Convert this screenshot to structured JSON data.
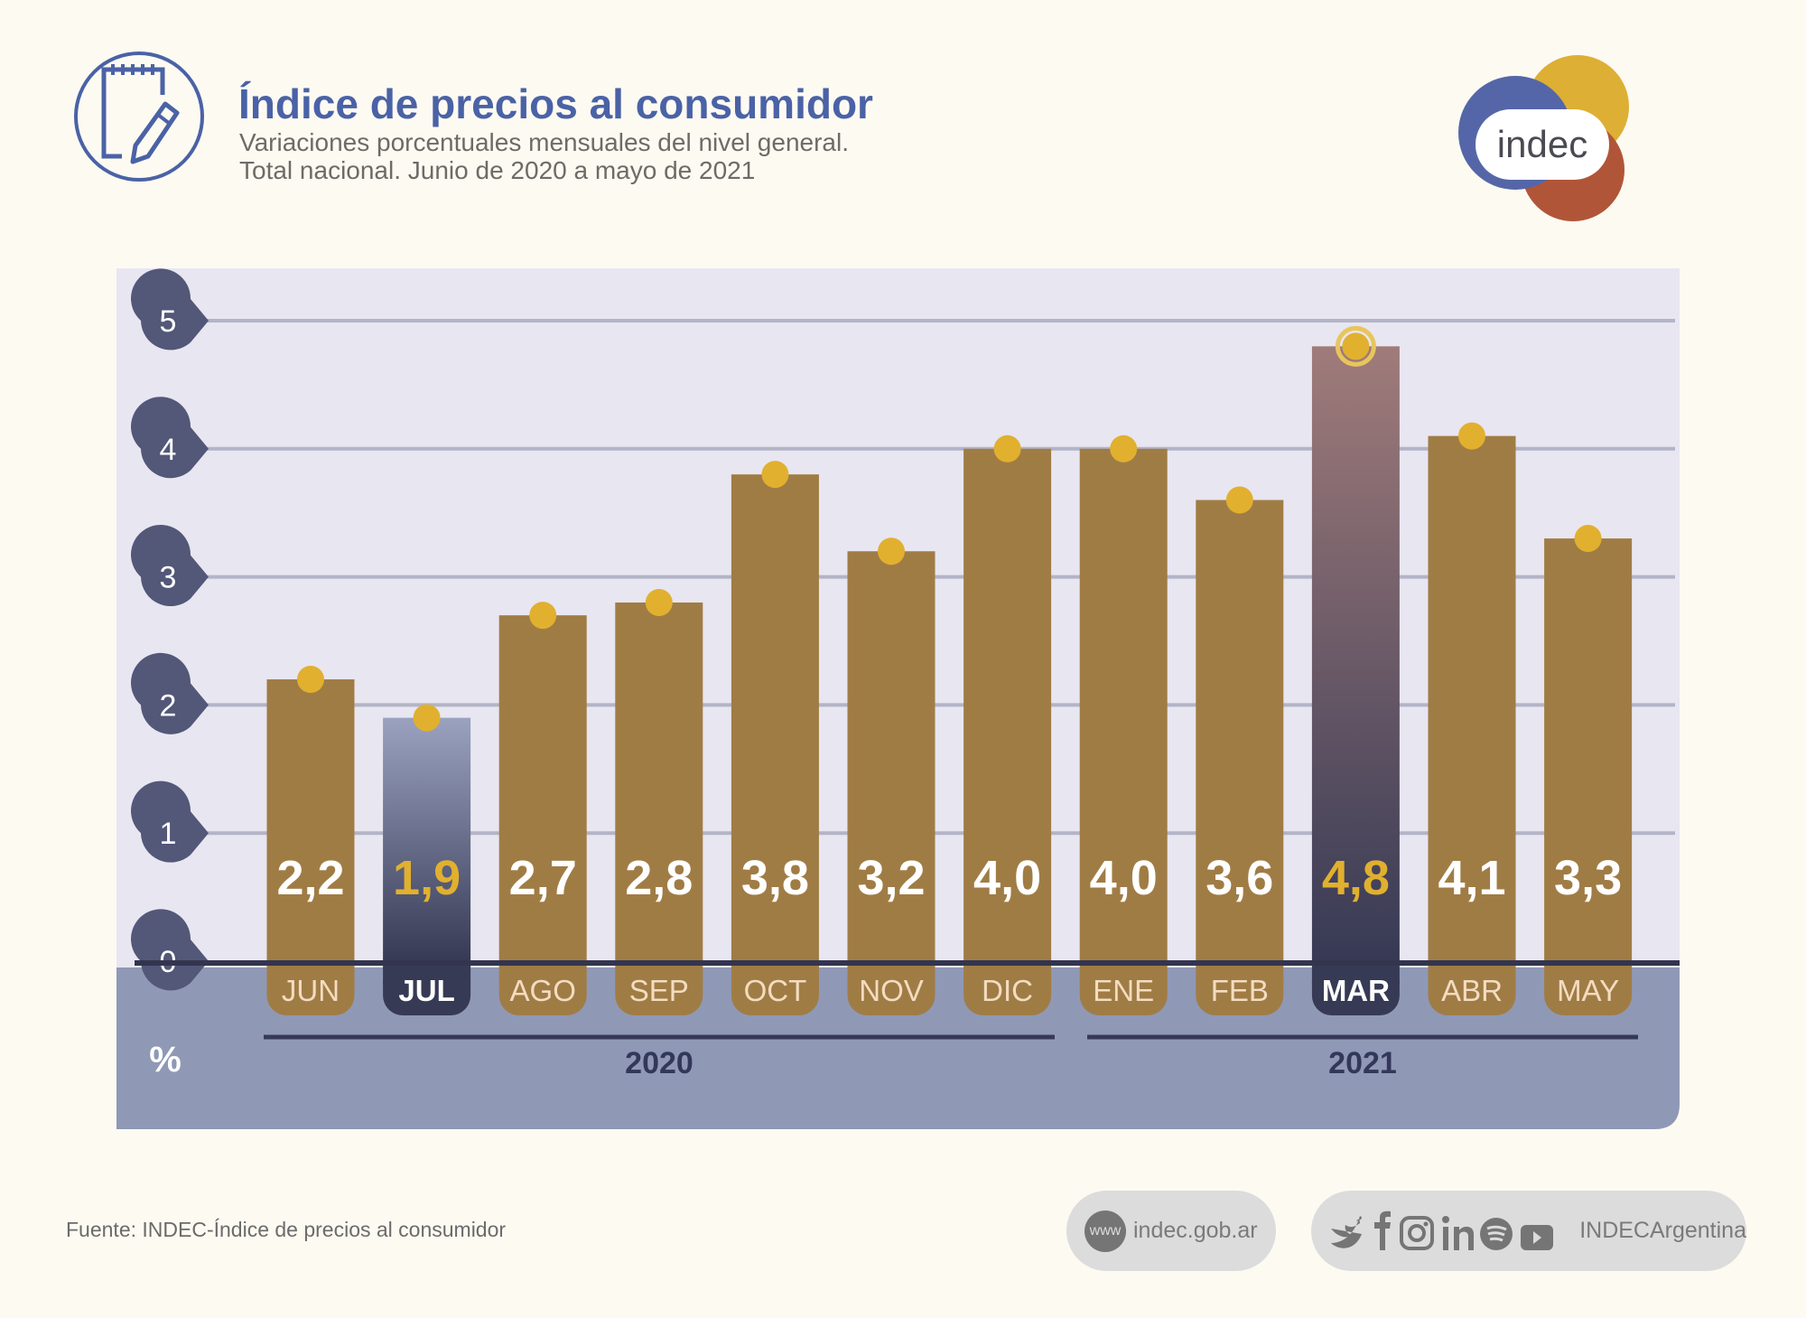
{
  "header": {
    "title": "Índice de precios al consumidor",
    "subtitle_line1": "Variaciones porcentuales mensuales del nivel general.",
    "subtitle_line2": "Total nacional. Junio de 2020 a mayo de 2021",
    "icon": "notepad-pencil-icon",
    "logo_text": "indec"
  },
  "chart_data": {
    "type": "bar",
    "categories": [
      "JUN",
      "JUL",
      "AGO",
      "SEP",
      "OCT",
      "NOV",
      "DIC",
      "ENE",
      "FEB",
      "MAR",
      "ABR",
      "MAY"
    ],
    "values": [
      2.2,
      1.9,
      2.7,
      2.8,
      3.8,
      3.2,
      4.0,
      4.0,
      3.6,
      4.8,
      4.1,
      3.3
    ],
    "value_labels": [
      "2,2",
      "1,9",
      "2,7",
      "2,8",
      "3,8",
      "3,2",
      "4,0",
      "4,0",
      "3,6",
      "4,8",
      "4,1",
      "3,3"
    ],
    "highlighted": [
      "JUL",
      "MAR"
    ],
    "years": [
      {
        "label": "2020",
        "from": "JUN",
        "to": "DIC"
      },
      {
        "label": "2021",
        "from": "ENE",
        "to": "MAY"
      }
    ],
    "yticks": [
      "0",
      "1",
      "2",
      "3",
      "4",
      "5"
    ],
    "ylim": [
      0,
      5
    ],
    "ylabel": "%",
    "grid": true,
    "colors": {
      "bar": "#a07c45",
      "highlight_top_jul": "#9aa2c0",
      "highlight_top_mar": "#a07b7a",
      "highlight_bottom": "#373a55",
      "dot": "#e1b02f",
      "panel": "#e8e6f1",
      "band": "#8f99b6",
      "axis_marker": "#535778"
    }
  },
  "footer": {
    "source": "Fuente: INDEC-Índice de precios al consumidor",
    "www_badge": "www",
    "website": "indec.gob.ar",
    "social_handle": "INDECArgentina",
    "social_icons": [
      "twitter-icon",
      "facebook-icon",
      "instagram-icon",
      "linkedin-icon",
      "spotify-icon",
      "youtube-icon"
    ]
  }
}
